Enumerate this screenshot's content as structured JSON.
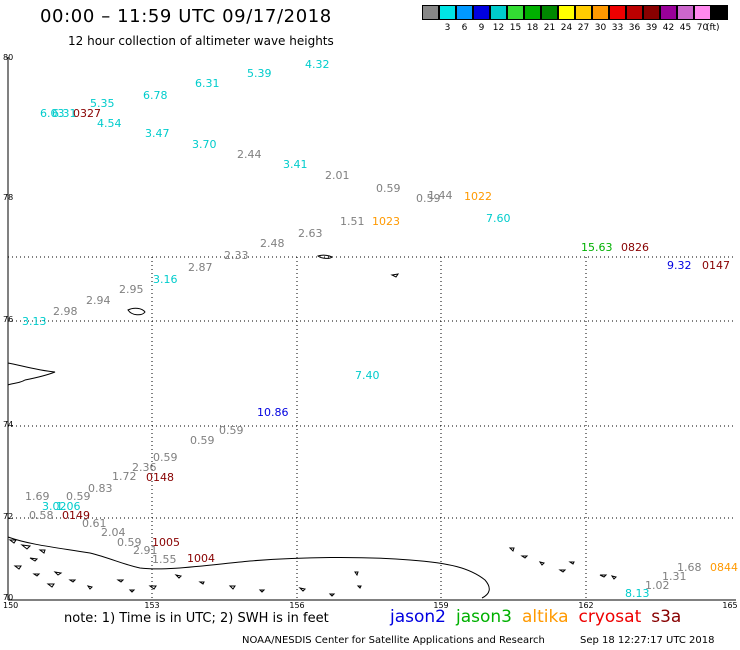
{
  "header": {
    "title": "00:00 – 11:59 UTC 09/17/2018",
    "subtitle": "12 hour collection of altimeter wave heights"
  },
  "legend": {
    "unit": "(ft)",
    "items": [
      {
        "label": "",
        "color": "#888888"
      },
      {
        "label": "3",
        "color": "#00e5e5"
      },
      {
        "label": "6",
        "color": "#0099ff"
      },
      {
        "label": "9",
        "color": "#0000e0"
      },
      {
        "label": "12",
        "color": "#00cccc"
      },
      {
        "label": "15",
        "color": "#33dd33"
      },
      {
        "label": "18",
        "color": "#00b000"
      },
      {
        "label": "21",
        "color": "#008800"
      },
      {
        "label": "24",
        "color": "#ffff00"
      },
      {
        "label": "27",
        "color": "#ffcc00"
      },
      {
        "label": "30",
        "color": "#ff9900"
      },
      {
        "label": "33",
        "color": "#ee0000"
      },
      {
        "label": "36",
        "color": "#bb0000"
      },
      {
        "label": "39",
        "color": "#880000"
      },
      {
        "label": "42",
        "color": "#990099"
      },
      {
        "label": "45",
        "color": "#cc66cc"
      },
      {
        "label": "70",
        "color": "#ff88ee"
      },
      {
        "label": "",
        "color": "#000000"
      }
    ]
  },
  "map": {
    "x_ticks": [
      "150",
      "153",
      "156",
      "159",
      "162",
      "165"
    ],
    "y_ticks": [
      "80",
      "78",
      "76",
      "74",
      "72",
      "70"
    ],
    "observations": [
      {
        "text": "4.32",
        "color": "#00cccc"
      },
      {
        "text": "5.39",
        "color": "#00cccc"
      },
      {
        "text": "6.31",
        "color": "#00cccc"
      },
      {
        "text": "6.78",
        "color": "#00cccc"
      },
      {
        "text": "5.35",
        "color": "#00cccc"
      },
      {
        "text": "6.03",
        "color": "#00cccc"
      },
      {
        "text": "6.31",
        "color": "#00cccc"
      },
      {
        "text": "0327",
        "color": "#880000"
      },
      {
        "text": "4.54",
        "color": "#00cccc"
      },
      {
        "text": "3.47",
        "color": "#00cccc"
      },
      {
        "text": "3.70",
        "color": "#00cccc"
      },
      {
        "text": "2.44",
        "color": "#808080"
      },
      {
        "text": "3.41",
        "color": "#00cccc"
      },
      {
        "text": "2.01",
        "color": "#808080"
      },
      {
        "text": "0.59",
        "color": "#808080"
      },
      {
        "text": "0.59",
        "color": "#808080"
      },
      {
        "text": "1.44",
        "color": "#808080"
      },
      {
        "text": "1022",
        "color": "#ff9900"
      },
      {
        "text": "1.51",
        "color": "#808080"
      },
      {
        "text": "1023",
        "color": "#ff9900"
      },
      {
        "text": "7.60",
        "color": "#00cccc"
      },
      {
        "text": "2.63",
        "color": "#808080"
      },
      {
        "text": "2.48",
        "color": "#808080"
      },
      {
        "text": "15.63",
        "color": "#00b000"
      },
      {
        "text": "0826",
        "color": "#880000"
      },
      {
        "text": "2.33",
        "color": "#808080"
      },
      {
        "text": "9.32",
        "color": "#0000e0"
      },
      {
        "text": "0147",
        "color": "#880000"
      },
      {
        "text": "2.87",
        "color": "#808080"
      },
      {
        "text": "3.16",
        "color": "#00cccc"
      },
      {
        "text": "2.95",
        "color": "#808080"
      },
      {
        "text": "2.94",
        "color": "#808080"
      },
      {
        "text": "2.98",
        "color": "#808080"
      },
      {
        "text": "3.13",
        "color": "#00cccc"
      },
      {
        "text": "7.40",
        "color": "#00cccc"
      },
      {
        "text": "10.86",
        "color": "#0000e0"
      },
      {
        "text": "0.59",
        "color": "#808080"
      },
      {
        "text": "0.59",
        "color": "#808080"
      },
      {
        "text": "0.59",
        "color": "#808080"
      },
      {
        "text": "2.36",
        "color": "#808080"
      },
      {
        "text": "1.72",
        "color": "#808080"
      },
      {
        "text": "0148",
        "color": "#880000"
      },
      {
        "text": "0.83",
        "color": "#808080"
      },
      {
        "text": "1.69",
        "color": "#808080"
      },
      {
        "text": "0.59",
        "color": "#808080"
      },
      {
        "text": "3.02",
        "color": "#00cccc"
      },
      {
        "text": "1.06",
        "color": "#00cccc"
      },
      {
        "text": "0.58",
        "color": "#808080"
      },
      {
        "text": "0149",
        "color": "#880000"
      },
      {
        "text": "0.61",
        "color": "#808080"
      },
      {
        "text": "2.04",
        "color": "#808080"
      },
      {
        "text": "0.59",
        "color": "#808080"
      },
      {
        "text": "1005",
        "color": "#880000"
      },
      {
        "text": "2.91",
        "color": "#808080"
      },
      {
        "text": "1.55",
        "color": "#808080"
      },
      {
        "text": "1004",
        "color": "#880000"
      },
      {
        "text": "1.68",
        "color": "#808080"
      },
      {
        "text": "1.31",
        "color": "#808080"
      },
      {
        "text": "1.02",
        "color": "#808080"
      },
      {
        "text": "8.13",
        "color": "#00cccc"
      },
      {
        "text": "0844",
        "color": "#ff9900"
      }
    ]
  },
  "footer": {
    "note": "note: 1) Time is in UTC; 2) SWH is in feet",
    "satellites": [
      {
        "name": "jason2",
        "color": "#0000e0"
      },
      {
        "name": "jason3",
        "color": "#00b000"
      },
      {
        "name": "altika",
        "color": "#ff9900"
      },
      {
        "name": "cryosat",
        "color": "#ee0000"
      },
      {
        "name": "s3a",
        "color": "#880000"
      }
    ],
    "credit": "NOAA/NESDIS Center for Satellite Applications and Research",
    "timestamp": "Sep 18 12:27:17 UTC 2018"
  }
}
